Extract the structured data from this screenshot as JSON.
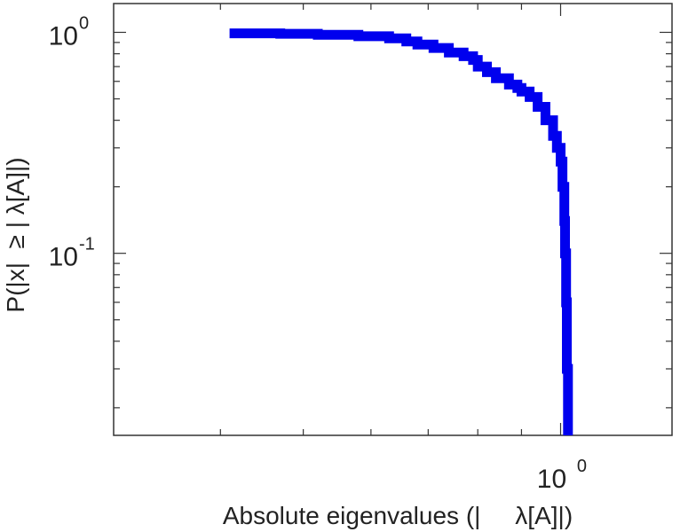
{
  "chart_data": {
    "type": "line",
    "title": "",
    "xlabel": "Absolute eigenvalues (|     λ[A]|)",
    "ylabel": "P(|x|  ≥ | λ[A]|)",
    "xscale": "log",
    "yscale": "log",
    "xlim": [
      0.3,
      1.35
    ],
    "ylim": [
      0.015,
      1.35
    ],
    "grid": false,
    "legend": "none",
    "line_color": "#0000ee",
    "xticks": [
      {
        "base": "10",
        "exp": "0",
        "value": 1
      }
    ],
    "yticks": [
      {
        "base": "10",
        "exp": "0",
        "value": 1
      },
      {
        "base": "10",
        "exp": "-1",
        "value": 0.1
      }
    ],
    "series": [
      {
        "x": [
          0.41,
          0.47,
          0.52,
          0.58,
          0.63,
          0.66,
          0.68,
          0.71,
          0.74,
          0.77,
          0.79,
          0.8,
          0.82,
          0.84,
          0.87,
          0.89,
          0.9,
          0.92,
          0.94,
          0.96,
          0.98,
          0.99,
          1.0,
          1.005,
          1.01,
          1.012,
          1.015,
          1.017,
          1.02
        ],
        "y": [
          0.99,
          0.985,
          0.975,
          0.96,
          0.94,
          0.91,
          0.88,
          0.85,
          0.81,
          0.78,
          0.75,
          0.7,
          0.66,
          0.62,
          0.58,
          0.56,
          0.54,
          0.51,
          0.46,
          0.4,
          0.34,
          0.3,
          0.26,
          0.2,
          0.14,
          0.1,
          0.06,
          0.03,
          0.015
        ]
      }
    ]
  }
}
